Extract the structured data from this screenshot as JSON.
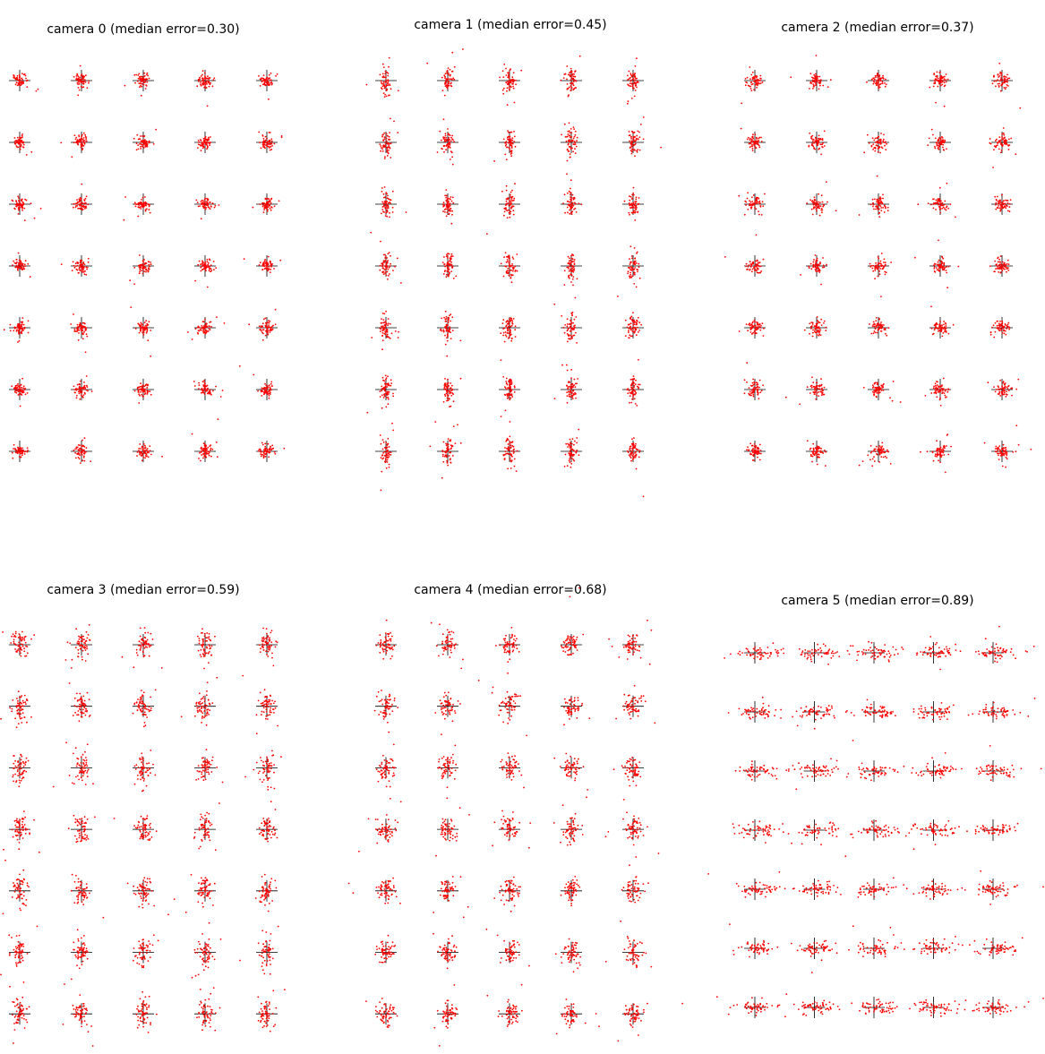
{
  "colors": {
    "points": "#ff0000",
    "crosshair": "#000000",
    "background": "#ffffff"
  },
  "chart_data": [
    {
      "type": "scatter",
      "title": "camera 0 (median error=0.30)",
      "grid_layout": {
        "rows": 7,
        "cols": 5
      },
      "axes": "off",
      "spread_x": 0.3,
      "spread_y": 0.3,
      "bias_x": 0.0,
      "description_seed": 11
    },
    {
      "type": "scatter",
      "title": "camera 1 (median error=0.45)",
      "grid_layout": {
        "rows": 7,
        "cols": 5
      },
      "axes": "off",
      "spread_x": 0.25,
      "spread_y": 0.6,
      "bias_x": 0.0,
      "description_seed": 23
    },
    {
      "type": "scatter",
      "title": "camera 2 (median error=0.37)",
      "grid_layout": {
        "rows": 7,
        "cols": 5
      },
      "axes": "off",
      "spread_x": 0.35,
      "spread_y": 0.35,
      "bias_x": 0.0,
      "description_seed": 37
    },
    {
      "type": "scatter",
      "title": "camera 3 (median error=0.59)",
      "grid_layout": {
        "rows": 7,
        "cols": 5
      },
      "axes": "off",
      "spread_x": 0.35,
      "spread_y": 0.65,
      "bias_x": 0.0,
      "description_seed": 41
    },
    {
      "type": "scatter",
      "title": "camera 4 (median error=0.68)",
      "grid_layout": {
        "rows": 7,
        "cols": 5
      },
      "axes": "off",
      "spread_x": 0.4,
      "spread_y": 0.55,
      "bias_x": 0.0,
      "description_seed": 53
    },
    {
      "type": "scatter",
      "title": "camera 5 (median error=0.89)",
      "grid_layout": {
        "rows": 7,
        "cols": 5
      },
      "axes": "off",
      "spread_x": 0.9,
      "spread_y": 0.3,
      "bias_x": 0.6,
      "description_seed": 67
    }
  ]
}
